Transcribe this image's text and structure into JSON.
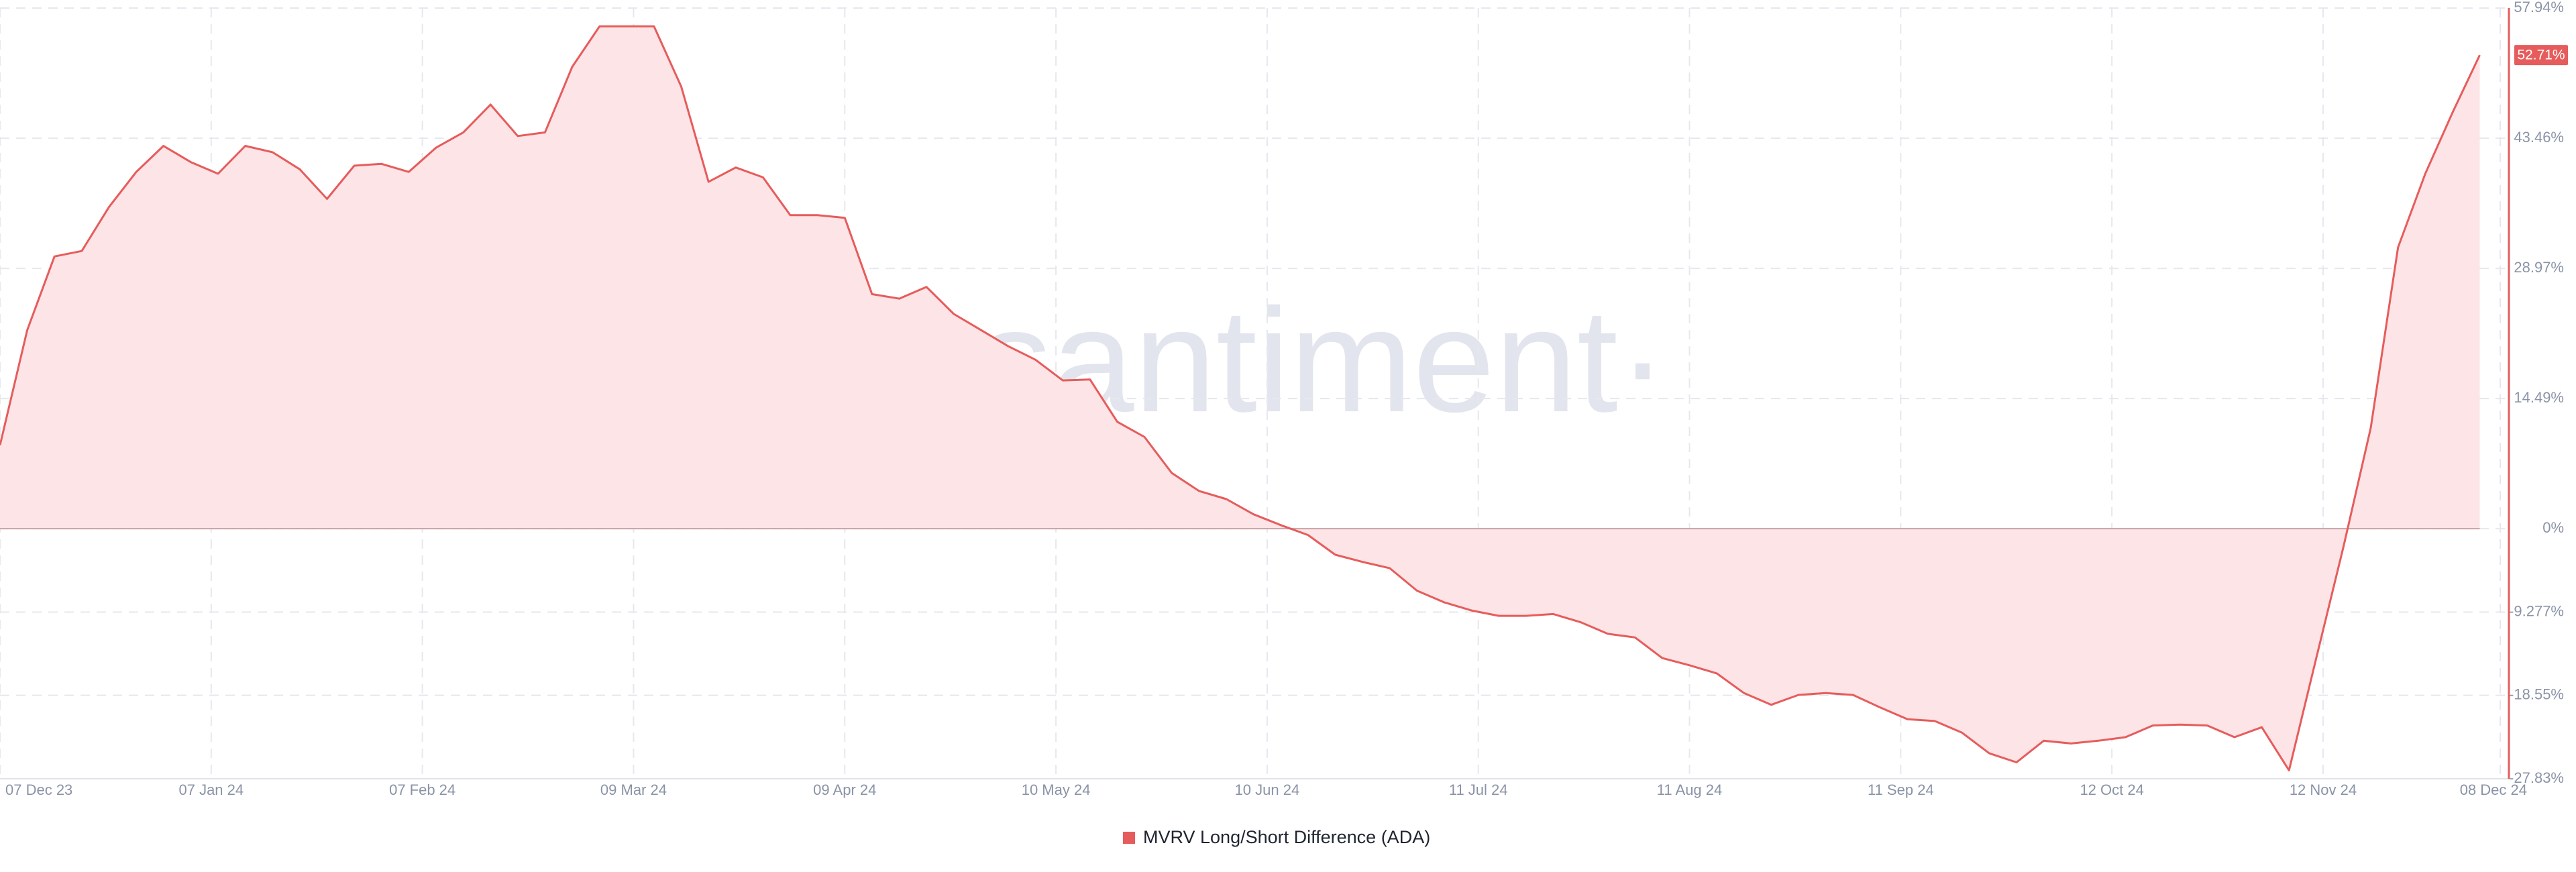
{
  "chart_data": {
    "type": "area",
    "watermark": "·santiment·",
    "x": [
      "07 Dec 23",
      "11 Dec 23",
      "15 Dec 23",
      "19 Dec 23",
      "23 Dec 23",
      "27 Dec 23",
      "31 Dec 23",
      "04 Jan 24",
      "08 Jan 24",
      "12 Jan 24",
      "16 Jan 24",
      "20 Jan 24",
      "24 Jan 24",
      "28 Jan 24",
      "01 Feb 24",
      "05 Feb 24",
      "09 Feb 24",
      "13 Feb 24",
      "17 Feb 24",
      "21 Feb 24",
      "25 Feb 24",
      "29 Feb 24",
      "04 Mar 24",
      "08 Mar 24",
      "12 Mar 24",
      "16 Mar 24",
      "20 Mar 24",
      "24 Mar 24",
      "28 Mar 24",
      "01 Apr 24",
      "05 Apr 24",
      "09 Apr 24",
      "13 Apr 24",
      "17 Apr 24",
      "21 Apr 24",
      "25 Apr 24",
      "29 Apr 24",
      "03 May 24",
      "07 May 24",
      "11 May 24",
      "15 May 24",
      "19 May 24",
      "23 May 24",
      "27 May 24",
      "31 May 24",
      "04 Jun 24",
      "08 Jun 24",
      "12 Jun 24",
      "16 Jun 24",
      "20 Jun 24",
      "24 Jun 24",
      "28 Jun 24",
      "02 Jul 24",
      "06 Jul 24",
      "10 Jul 24",
      "14 Jul 24",
      "18 Jul 24",
      "22 Jul 24",
      "26 Jul 24",
      "30 Jul 24",
      "03 Aug 24",
      "07 Aug 24",
      "11 Aug 24",
      "15 Aug 24",
      "19 Aug 24",
      "23 Aug 24",
      "27 Aug 24",
      "31 Aug 24",
      "04 Sep 24",
      "08 Sep 24",
      "12 Sep 24",
      "16 Sep 24",
      "20 Sep 24",
      "24 Sep 24",
      "28 Sep 24",
      "02 Oct 24",
      "06 Oct 24",
      "10 Oct 24",
      "14 Oct 24",
      "18 Oct 24",
      "22 Oct 24",
      "26 Oct 24",
      "30 Oct 24",
      "03 Nov 24",
      "07 Nov 24",
      "11 Nov 24",
      "15 Nov 24",
      "19 Nov 24",
      "23 Nov 24",
      "27 Nov 24",
      "01 Dec 24",
      "05 Dec 24"
    ],
    "series": [
      {
        "name": "MVRV Long/Short Difference (ADA)",
        "color": "#e65c5c",
        "fill": "#fde4e6",
        "values": [
          9.3,
          22.1,
          30.3,
          30.9,
          35.8,
          39.7,
          42.6,
          40.8,
          39.5,
          42.6,
          41.9,
          40.0,
          36.7,
          40.4,
          40.6,
          39.7,
          42.4,
          44.1,
          47.2,
          43.7,
          44.1,
          51.4,
          55.9,
          55.9,
          55.9,
          49.2,
          38.6,
          40.2,
          39.1,
          34.9,
          34.9,
          34.6,
          26.1,
          25.6,
          26.9,
          23.9,
          22.1,
          20.3,
          18.8,
          16.5,
          16.6,
          11.9,
          10.2,
          6.2,
          4.2,
          3.3,
          1.6,
          0.4,
          -0.7,
          -2.9,
          -3.7,
          -4.4,
          -6.9,
          -8.2,
          -9.1,
          -9.7,
          -9.7,
          -9.5,
          -10.4,
          -11.7,
          -12.1,
          -14.4,
          -15.2,
          -16.1,
          -18.3,
          -19.6,
          -18.5,
          -18.3,
          -18.5,
          -19.9,
          -21.2,
          -21.4,
          -22.7,
          -25.0,
          -26.0,
          -23.6,
          -23.9,
          -23.6,
          -23.2,
          -21.9,
          -21.8,
          -21.9,
          -23.2,
          -22.1,
          -26.9,
          -14.4,
          -2.0,
          11.2,
          31.3,
          39.5,
          46.3,
          52.71
        ],
        "value_labels": [
          null,
          null,
          null,
          null,
          null,
          null,
          null,
          null,
          null,
          null,
          null,
          null,
          null,
          null,
          null,
          null,
          null,
          null,
          null,
          null,
          null,
          null,
          null,
          null,
          null,
          null,
          null,
          null,
          null,
          null,
          null,
          null,
          null,
          null,
          null,
          null,
          null,
          null,
          null,
          null,
          null,
          null,
          null,
          null,
          null,
          null,
          null,
          null,
          null,
          null,
          null,
          null,
          null,
          null,
          null,
          null,
          null,
          null,
          null,
          null,
          null,
          null,
          null,
          null,
          null,
          null,
          null,
          null,
          null,
          null,
          null,
          null,
          null,
          null,
          null,
          null,
          null,
          null,
          null,
          null,
          null,
          null,
          null,
          null,
          null,
          null,
          null,
          null,
          null,
          null,
          null,
          "52.71%"
        ]
      }
    ],
    "xlim": [
      "07 Dec 23",
      "08 Dec 24"
    ],
    "xticks": [
      "07 Dec 23",
      "07 Jan 24",
      "07 Feb 24",
      "09 Mar 24",
      "09 Apr 24",
      "10 May 24",
      "10 Jun 24",
      "11 Jul 24",
      "11 Aug 24",
      "11 Sep 24",
      "12 Oct 24",
      "12 Nov 24",
      "08 Dec 24"
    ],
    "ylim": [
      -27.83,
      57.94
    ],
    "yticks": [
      {
        "value": 57.94,
        "label": "57.94%"
      },
      {
        "value": 43.46,
        "label": "43.46%"
      },
      {
        "value": 28.97,
        "label": "28.97%"
      },
      {
        "value": 14.49,
        "label": "14.49%"
      },
      {
        "value": 0,
        "label": "0%"
      },
      {
        "value": -9.277,
        "label": "-9.277%"
      },
      {
        "value": -18.55,
        "label": "-18.55%"
      },
      {
        "value": -27.83,
        "label": "-27.83%"
      }
    ],
    "grid": true,
    "legend": "bottom"
  }
}
